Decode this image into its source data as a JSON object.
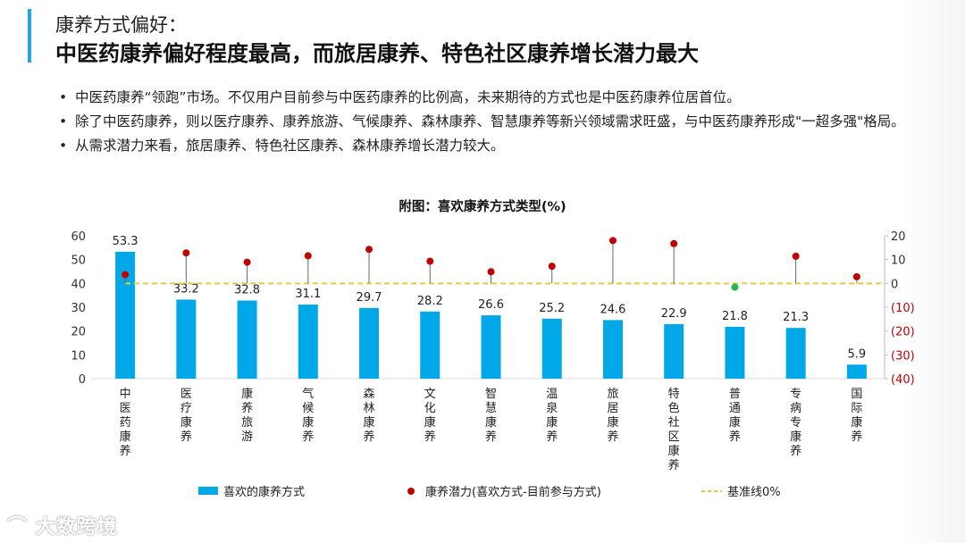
{
  "header": {
    "subtitle": "康养方式偏好：",
    "title": "中医药康养偏好程度最高，而旅居康养、特色社区康养增长潜力最大"
  },
  "bullets": [
    "中医药康养“领跑”市场。不仅用户目前参与中医药康养的比例高，未来期待的方式也是中医药康养位居首位。",
    "除了中医药康养，则以医疗康养、康养旅游、气候康养、森林康养、智慧康养等新兴领域需求旺盛，与中医药康养形成\"一超多强\"格局。",
    "从需求潜力来看，旅居康养、特色社区康养、森林康养增长潜力较大。"
  ],
  "logo": "大数跨境",
  "chart_data": {
    "type": "bar+lollipop",
    "title": "附图：喜欢康养方式类型(%)",
    "categories": [
      "中医药康养",
      "医疗康养",
      "康养旅游",
      "气候康养",
      "森林康养",
      "文化康养",
      "智慧康养",
      "温泉康养",
      "旅居康养",
      "特色社区康养",
      "普通康养",
      "专病专康养",
      "国际康养"
    ],
    "series": [
      {
        "name": "喜欢的康养方式",
        "type": "bar",
        "axis": "left",
        "color": "#00a8e8",
        "values": [
          53.3,
          33.2,
          32.8,
          31.1,
          29.7,
          28.2,
          26.6,
          25.2,
          24.6,
          22.9,
          21.8,
          21.3,
          5.9
        ]
      },
      {
        "name": "康养潜力(喜欢方式-目前参与方式)",
        "type": "lollipop",
        "axis": "right",
        "color": "#c00000",
        "negative_color": "#1db954",
        "values": [
          3.7,
          12.8,
          8.9,
          11.6,
          14.3,
          9.3,
          4.9,
          7.2,
          18.0,
          16.7,
          -1.6,
          11.4,
          2.8
        ]
      },
      {
        "name": "基准线0%",
        "type": "line",
        "axis": "right",
        "color": "#e8c840",
        "value": 0
      }
    ],
    "left_axis": {
      "ylim": [
        0,
        60
      ],
      "ticks": [
        "0",
        "10",
        "20",
        "30",
        "40",
        "50",
        "60"
      ]
    },
    "right_axis": {
      "ylim": [
        -40,
        20
      ],
      "ticks": [
        "(40)",
        "(30)",
        "(20)",
        "(10)",
        "0",
        "10",
        "20"
      ],
      "negative_color": "#c00000"
    },
    "grid": false,
    "legend": "bottom"
  }
}
